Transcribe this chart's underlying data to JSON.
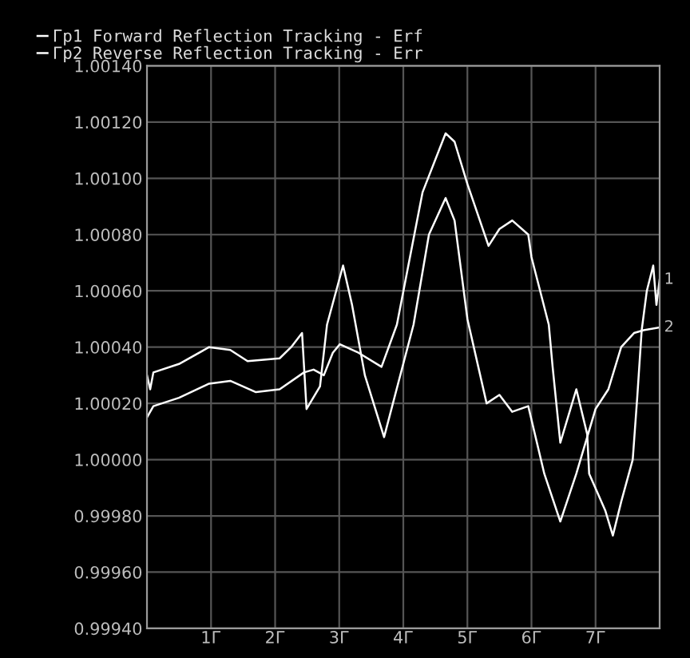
{
  "chart_data": {
    "type": "line",
    "series": [
      {
        "name": "Гр1 Forward Reflection Tracking - Erf",
        "color": "#ffffff",
        "x": [
          0.0,
          0.1,
          0.5,
          0.97,
          1.3,
          1.7,
          2.07,
          2.45,
          2.6,
          2.76,
          2.9,
          3.01,
          3.3,
          3.66,
          3.9,
          4.3,
          4.66,
          4.8,
          5.0,
          5.33,
          5.5,
          5.7,
          5.95,
          6.0,
          6.27,
          6.33,
          6.45,
          6.7,
          6.87,
          6.9,
          7.15,
          7.27,
          7.4,
          7.58,
          7.65,
          7.72,
          7.8,
          7.9,
          7.95,
          8.0
        ],
        "values": [
          1.00015,
          1.00019,
          1.00022,
          1.00027,
          1.00028,
          1.00024,
          1.00025,
          1.00031,
          1.00032,
          1.0003,
          1.00038,
          1.00041,
          1.00038,
          1.00033,
          1.00048,
          1.00095,
          1.00116,
          1.00113,
          1.00098,
          1.00076,
          1.00082,
          1.00085,
          1.0008,
          1.00072,
          1.00048,
          1.00033,
          1.00006,
          1.00025,
          1.00009,
          0.99995,
          0.99982,
          0.99973,
          0.99985,
          1.0,
          1.00022,
          1.00046,
          1.0006,
          1.00069,
          1.00055,
          1.00064
        ]
      },
      {
        "name": "Гр2 Reverse Reflection Tracking - Err",
        "color": "#ffffff",
        "x": [
          0.0,
          0.05,
          0.1,
          0.5,
          0.97,
          1.3,
          1.57,
          2.07,
          2.25,
          2.42,
          2.49,
          2.7,
          2.81,
          3.06,
          3.2,
          3.4,
          3.7,
          4.16,
          4.4,
          4.66,
          4.8,
          5.0,
          5.3,
          5.5,
          5.7,
          5.95,
          6.2,
          6.45,
          6.7,
          7.0,
          7.2,
          7.4,
          7.6,
          7.75,
          8.0
        ],
        "values": [
          1.0003,
          1.00025,
          1.00031,
          1.00034,
          1.0004,
          1.00039,
          1.00035,
          1.00036,
          1.0004,
          1.00045,
          1.00018,
          1.00026,
          1.00048,
          1.00069,
          1.00055,
          1.0003,
          1.00008,
          1.00048,
          1.0008,
          1.00093,
          1.00085,
          1.0005,
          1.0002,
          1.00023,
          1.00017,
          1.00019,
          0.99995,
          0.99978,
          0.99995,
          1.00018,
          1.00025,
          1.0004,
          1.00045,
          1.00046,
          1.00047
        ]
      }
    ],
    "xlim": [
      0,
      8
    ],
    "xticks": [
      {
        "value": 1,
        "label": "1Г"
      },
      {
        "value": 2,
        "label": "2Г"
      },
      {
        "value": 3,
        "label": "3Г"
      },
      {
        "value": 4,
        "label": "4Г"
      },
      {
        "value": 5,
        "label": "5Г"
      },
      {
        "value": 6,
        "label": "6Г"
      },
      {
        "value": 7,
        "label": "7Г"
      }
    ],
    "ylim": [
      0.9994,
      1.0014
    ],
    "yticks": [
      {
        "value": 0.9994,
        "label": "0.99940"
      },
      {
        "value": 0.9996,
        "label": "0.99960"
      },
      {
        "value": 0.9998,
        "label": "0.99980"
      },
      {
        "value": 1.0,
        "label": "1.00000"
      },
      {
        "value": 1.0002,
        "label": "1.00020"
      },
      {
        "value": 1.0004,
        "label": "1.00040"
      },
      {
        "value": 1.0006,
        "label": "1.00060"
      },
      {
        "value": 1.0008,
        "label": "1.00080"
      },
      {
        "value": 1.001,
        "label": "1.00100"
      },
      {
        "value": 1.0012,
        "label": "1.00120"
      },
      {
        "value": 1.0014,
        "label": "1.00140"
      }
    ],
    "grid": true,
    "legend": "top left",
    "annotations": [
      {
        "text": "1",
        "x": 8,
        "y": 1.00064
      },
      {
        "text": "2",
        "x": 8,
        "y": 1.00047
      }
    ]
  }
}
